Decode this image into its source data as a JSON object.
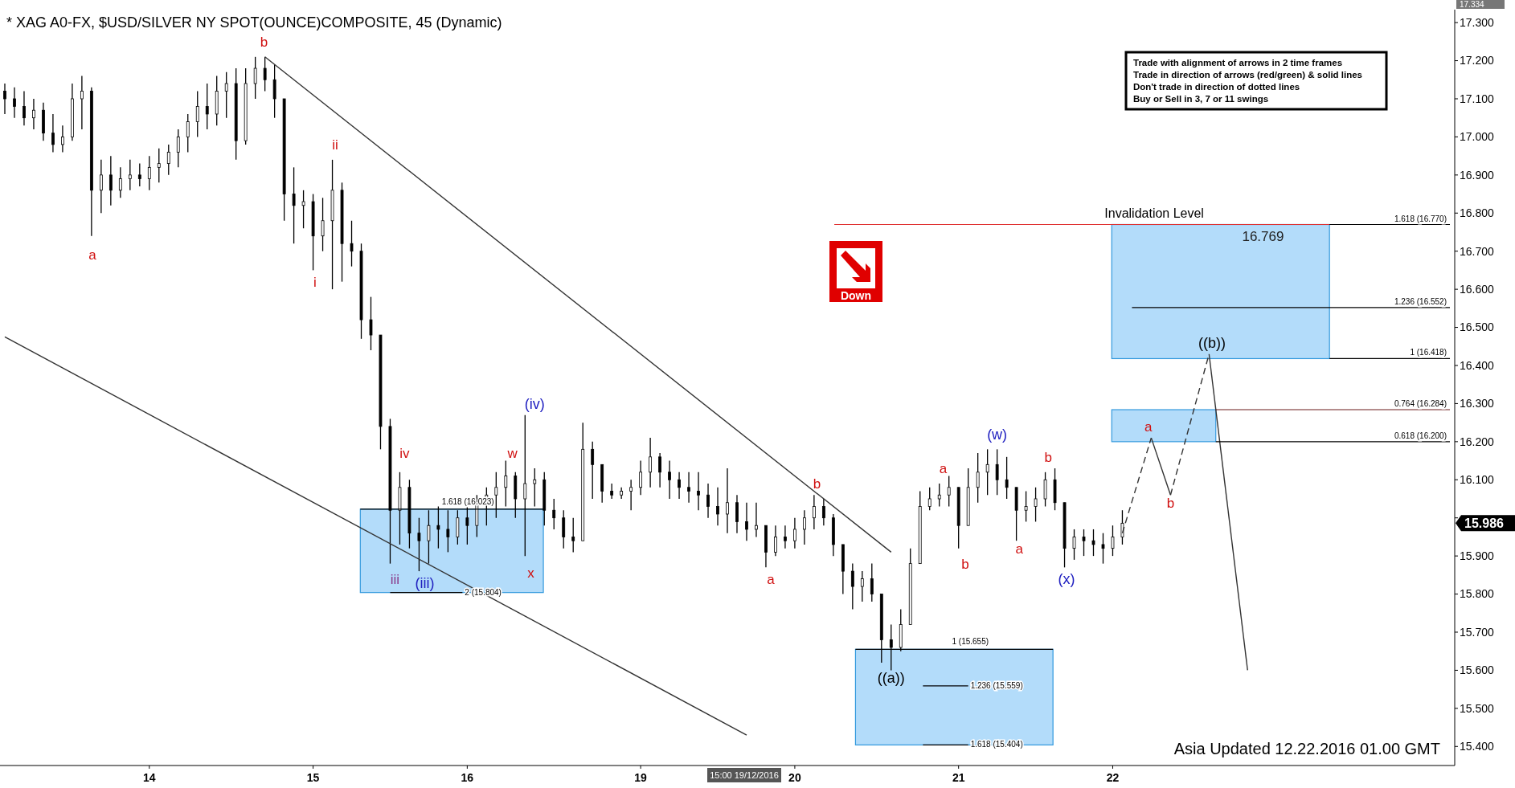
{
  "chart_data": {
    "type": "candlestick",
    "title": "* XAG A0-FX, $USD/SILVER NY SPOT(OUNCE)COMPOSITE, 45 (Dynamic)",
    "color": "#000000",
    "categories": [
      null,
      null,
      null,
      null,
      null,
      null,
      null,
      null,
      null,
      null,
      null,
      null,
      null,
      null,
      null,
      "14",
      null,
      null,
      null,
      null,
      null,
      null,
      null,
      null,
      null,
      null,
      null,
      null,
      null,
      null,
      null,
      null,
      "15",
      null,
      null,
      null,
      null,
      null,
      null,
      null,
      null,
      null,
      null,
      null,
      null,
      null,
      null,
      null,
      "16",
      null,
      null,
      null,
      null,
      null,
      null,
      null,
      null,
      null,
      null,
      null,
      null,
      null,
      null,
      null,
      null,
      null,
      "19",
      null,
      null,
      null,
      null,
      null,
      null,
      null,
      null,
      null,
      null,
      null,
      null,
      null,
      null,
      null,
      "20",
      null,
      null,
      null,
      null,
      null,
      null,
      null,
      null,
      null,
      null,
      null,
      null,
      null,
      null,
      null,
      null,
      "21",
      null,
      null,
      null,
      null,
      null,
      null,
      null,
      null,
      null,
      null,
      null,
      null,
      null,
      null,
      null,
      "22",
      null,
      null,
      null,
      null,
      null,
      null,
      null,
      null,
      null,
      null,
      null,
      null,
      null,
      null,
      null,
      null,
      null,
      null,
      null,
      null,
      null,
      null,
      null,
      null,
      null,
      null,
      null,
      null,
      null,
      null,
      null,
      null,
      null,
      null,
      null
    ],
    "ohlc": [
      [
        17.12,
        17.14,
        17.06,
        17.1
      ],
      [
        17.1,
        17.13,
        17.05,
        17.08
      ],
      [
        17.08,
        17.12,
        17.03,
        17.05
      ],
      [
        17.05,
        17.1,
        17.02,
        17.07
      ],
      [
        17.07,
        17.09,
        16.99,
        17.01
      ],
      [
        17.01,
        17.06,
        16.96,
        16.98
      ],
      [
        16.98,
        17.03,
        16.96,
        17.0
      ],
      [
        17.0,
        17.14,
        16.99,
        17.1
      ],
      [
        17.1,
        17.16,
        17.02,
        17.12
      ],
      [
        17.12,
        17.13,
        16.74,
        16.86
      ],
      [
        16.86,
        16.94,
        16.8,
        16.9
      ],
      [
        16.9,
        16.95,
        16.82,
        16.86
      ],
      [
        16.86,
        16.92,
        16.84,
        16.89
      ],
      [
        16.89,
        16.94,
        16.86,
        16.9
      ],
      [
        16.9,
        16.93,
        16.87,
        16.89
      ],
      [
        16.89,
        16.95,
        16.86,
        16.92
      ],
      [
        16.92,
        16.97,
        16.88,
        16.93
      ],
      [
        16.93,
        16.98,
        16.9,
        16.96
      ],
      [
        16.96,
        17.02,
        16.92,
        17.0
      ],
      [
        17.0,
        17.06,
        16.96,
        17.04
      ],
      [
        17.04,
        17.12,
        17.0,
        17.08
      ],
      [
        17.08,
        17.14,
        17.02,
        17.06
      ],
      [
        17.06,
        17.16,
        17.03,
        17.12
      ],
      [
        17.12,
        17.17,
        17.05,
        17.14
      ],
      [
        17.14,
        17.18,
        16.94,
        16.99
      ],
      [
        16.99,
        17.18,
        16.98,
        17.14
      ],
      [
        17.14,
        17.21,
        17.1,
        17.18
      ],
      [
        17.18,
        17.21,
        17.12,
        17.15
      ],
      [
        17.15,
        17.19,
        17.05,
        17.1
      ],
      [
        17.1,
        17.1,
        16.78,
        16.85
      ],
      [
        16.85,
        16.92,
        16.72,
        16.82
      ],
      [
        16.82,
        16.86,
        16.76,
        16.83
      ],
      [
        16.83,
        16.85,
        16.65,
        16.74
      ],
      [
        16.74,
        16.84,
        16.7,
        16.78
      ],
      [
        16.78,
        16.94,
        16.6,
        16.86
      ],
      [
        16.86,
        16.88,
        16.62,
        16.72
      ],
      [
        16.72,
        16.78,
        16.66,
        16.7
      ],
      [
        16.7,
        16.72,
        16.47,
        16.52
      ],
      [
        16.52,
        16.58,
        16.44,
        16.48
      ],
      [
        16.48,
        16.48,
        16.18,
        16.24
      ],
      [
        16.24,
        16.26,
        15.88,
        16.02
      ],
      [
        16.02,
        16.12,
        15.93,
        16.08
      ],
      [
        16.08,
        16.1,
        15.92,
        15.96
      ],
      [
        15.96,
        16.0,
        15.86,
        15.94
      ],
      [
        15.94,
        16.02,
        15.88,
        15.98
      ],
      [
        15.98,
        16.03,
        15.92,
        15.97
      ],
      [
        15.97,
        16.02,
        15.91,
        15.95
      ],
      [
        15.95,
        16.02,
        15.93,
        16.0
      ],
      [
        16.0,
        16.04,
        15.93,
        15.98
      ],
      [
        15.98,
        16.06,
        15.95,
        16.04
      ],
      [
        16.04,
        16.08,
        15.98,
        16.06
      ],
      [
        16.06,
        16.12,
        16.0,
        16.08
      ],
      [
        16.08,
        16.15,
        16.03,
        16.11
      ],
      [
        16.11,
        16.12,
        16.0,
        16.05
      ],
      [
        16.05,
        16.27,
        15.9,
        16.09
      ],
      [
        16.09,
        16.13,
        16.03,
        16.1
      ],
      [
        16.1,
        16.12,
        15.98,
        16.02
      ],
      [
        16.02,
        16.05,
        15.97,
        16.0
      ],
      [
        16.0,
        16.02,
        15.92,
        15.95
      ],
      [
        15.95,
        16.0,
        15.91,
        15.94
      ],
      [
        15.94,
        16.25,
        15.94,
        16.18
      ],
      [
        16.18,
        16.2,
        16.05,
        16.14
      ],
      [
        16.14,
        16.14,
        16.04,
        16.07
      ],
      [
        16.07,
        16.09,
        16.05,
        16.06
      ],
      [
        16.06,
        16.08,
        16.05,
        16.07
      ],
      [
        16.07,
        16.1,
        16.02,
        16.08
      ],
      [
        16.08,
        16.15,
        16.06,
        16.12
      ],
      [
        16.12,
        16.21,
        16.08,
        16.16
      ],
      [
        16.16,
        16.17,
        16.08,
        16.12
      ],
      [
        16.12,
        16.15,
        16.05,
        16.1
      ],
      [
        16.1,
        16.12,
        16.05,
        16.08
      ],
      [
        16.08,
        16.12,
        16.04,
        16.07
      ],
      [
        16.07,
        16.12,
        16.02,
        16.06
      ],
      [
        16.06,
        16.09,
        16.0,
        16.03
      ],
      [
        16.03,
        16.08,
        15.98,
        16.01
      ],
      [
        16.01,
        16.13,
        15.96,
        16.04
      ],
      [
        16.04,
        16.06,
        15.96,
        15.99
      ],
      [
        15.99,
        16.04,
        15.94,
        15.97
      ],
      [
        15.97,
        16.04,
        15.95,
        15.98
      ],
      [
        15.98,
        15.98,
        15.87,
        15.91
      ],
      [
        15.91,
        15.98,
        15.9,
        15.95
      ],
      [
        15.95,
        15.98,
        15.92,
        15.94
      ],
      [
        15.94,
        16.0,
        15.92,
        15.97
      ],
      [
        15.97,
        16.02,
        15.93,
        16.0
      ],
      [
        16.0,
        16.06,
        15.97,
        16.03
      ],
      [
        16.03,
        16.05,
        15.98,
        16.0
      ],
      [
        16.0,
        16.01,
        15.9,
        15.93
      ],
      [
        15.93,
        15.93,
        15.8,
        15.86
      ],
      [
        15.86,
        15.88,
        15.76,
        15.82
      ],
      [
        15.82,
        15.86,
        15.78,
        15.84
      ],
      [
        15.84,
        15.88,
        15.78,
        15.8
      ],
      [
        15.8,
        15.8,
        15.62,
        15.68
      ],
      [
        15.68,
        15.72,
        15.6,
        15.66
      ],
      [
        15.66,
        15.76,
        15.65,
        15.72
      ],
      [
        15.72,
        15.92,
        15.72,
        15.88
      ],
      [
        15.88,
        16.07,
        15.88,
        16.03
      ],
      [
        16.03,
        16.08,
        16.02,
        16.05
      ],
      [
        16.05,
        16.09,
        16.03,
        16.06
      ],
      [
        16.06,
        16.11,
        16.03,
        16.08
      ],
      [
        16.08,
        16.08,
        15.92,
        15.98
      ],
      [
        15.98,
        16.13,
        15.98,
        16.08
      ],
      [
        16.08,
        16.17,
        16.04,
        16.12
      ],
      [
        16.12,
        16.18,
        16.06,
        16.14
      ],
      [
        16.14,
        16.18,
        16.06,
        16.1
      ],
      [
        16.1,
        16.16,
        16.05,
        16.08
      ],
      [
        16.08,
        16.08,
        15.94,
        16.02
      ],
      [
        16.02,
        16.07,
        15.99,
        16.03
      ],
      [
        16.03,
        16.08,
        15.99,
        16.05
      ],
      [
        16.05,
        16.12,
        16.03,
        16.1
      ],
      [
        16.1,
        16.13,
        16.02,
        16.04
      ],
      [
        16.04,
        16.04,
        15.87,
        15.92
      ],
      [
        15.92,
        15.97,
        15.89,
        15.95
      ],
      [
        15.95,
        15.97,
        15.9,
        15.94
      ],
      [
        15.94,
        15.97,
        15.9,
        15.93
      ],
      [
        15.93,
        15.96,
        15.88,
        15.92
      ],
      [
        15.92,
        15.98,
        15.9,
        15.95
      ],
      [
        15.95,
        16.02,
        15.93,
        15.986
      ],
      null,
      null,
      null,
      null,
      null,
      null,
      null,
      null,
      null,
      null,
      null,
      null,
      null,
      null,
      null,
      null,
      null,
      null,
      null,
      null,
      null,
      null,
      null,
      null,
      null,
      null,
      null,
      null,
      null,
      null,
      null,
      null,
      null,
      null
    ],
    "series": [
      {
        "type": "line",
        "color": "#333333",
        "line_style": "solid",
        "values": [
          null,
          null,
          null,
          null,
          null,
          null,
          null,
          null,
          null,
          null,
          null,
          null,
          null,
          null,
          null,
          null,
          null,
          null,
          null,
          null,
          null,
          null,
          null,
          null,
          null,
          null,
          null,
          17.21,
          null,
          null,
          null,
          null,
          null,
          null,
          null,
          null,
          null,
          null,
          null,
          null,
          null,
          null,
          null,
          null,
          null,
          null,
          null,
          null,
          null,
          null,
          null,
          null,
          null,
          null,
          null,
          null,
          null,
          null,
          null,
          null,
          null,
          null,
          null,
          null,
          null,
          null,
          null,
          null,
          null,
          null,
          null,
          null,
          null,
          null,
          null,
          null,
          null,
          null,
          null,
          null,
          null,
          null,
          null,
          null,
          null,
          null,
          null,
          null,
          null,
          null,
          null,
          null,
          15.91,
          null,
          null,
          null,
          null,
          null,
          null,
          null,
          null,
          null,
          null,
          null,
          null,
          null,
          null,
          null,
          null,
          null,
          null,
          null,
          null,
          null,
          null,
          null,
          null,
          null,
          null,
          null,
          null,
          null,
          null,
          null,
          null,
          null,
          null,
          null,
          null,
          null,
          null,
          null,
          null,
          null,
          null,
          null,
          null,
          null,
          null,
          null,
          null,
          null,
          null,
          null,
          null,
          null,
          null,
          null,
          null,
          null,
          null
        ]
      },
      {
        "type": "line",
        "color": "#333333",
        "line_style": "solid",
        "values": [
          16.475,
          null,
          null,
          null,
          null,
          null,
          null,
          null,
          null,
          null,
          null,
          null,
          null,
          null,
          null,
          null,
          null,
          null,
          null,
          null,
          null,
          null,
          null,
          null,
          null,
          null,
          null,
          null,
          null,
          null,
          null,
          null,
          null,
          null,
          null,
          null,
          null,
          null,
          null,
          null,
          null,
          null,
          null,
          null,
          null,
          null,
          null,
          null,
          null,
          null,
          null,
          null,
          null,
          null,
          null,
          null,
          null,
          null,
          null,
          null,
          null,
          null,
          null,
          null,
          null,
          null,
          null,
          null,
          null,
          null,
          null,
          null,
          null,
          null,
          null,
          null,
          null,
          15.43,
          null,
          null,
          null,
          null,
          null,
          null,
          null,
          null,
          null,
          null,
          null,
          null,
          null,
          null,
          null,
          null,
          null,
          null,
          null,
          null,
          null,
          null,
          null,
          null,
          null,
          null,
          null,
          null,
          null,
          null,
          null,
          null,
          null,
          null,
          null,
          null,
          null,
          null,
          null,
          null,
          null,
          null,
          null,
          null,
          null,
          null,
          null,
          null,
          null,
          null,
          null,
          null,
          null,
          null,
          null,
          null,
          null,
          null,
          null,
          null,
          null,
          null,
          null,
          null,
          null,
          null,
          null,
          null,
          null,
          null,
          null,
          null,
          null
        ]
      },
      {
        "type": "line",
        "color": "#333333",
        "line_style": "dashed",
        "values": [
          null,
          null,
          null,
          null,
          null,
          null,
          null,
          null,
          null,
          null,
          null,
          null,
          null,
          null,
          null,
          null,
          null,
          null,
          null,
          null,
          null,
          null,
          null,
          null,
          null,
          null,
          null,
          null,
          null,
          null,
          null,
          null,
          null,
          null,
          null,
          null,
          null,
          null,
          null,
          null,
          null,
          null,
          null,
          null,
          null,
          null,
          null,
          null,
          null,
          null,
          null,
          null,
          null,
          null,
          null,
          null,
          null,
          null,
          null,
          null,
          null,
          null,
          null,
          null,
          null,
          null,
          null,
          null,
          null,
          null,
          null,
          null,
          null,
          null,
          null,
          null,
          null,
          null,
          null,
          null,
          null,
          null,
          null,
          null,
          null,
          null,
          null,
          null,
          null,
          null,
          null,
          null,
          null,
          null,
          null,
          null,
          null,
          null,
          null,
          null,
          null,
          null,
          null,
          null,
          null,
          null,
          null,
          null,
          null,
          null,
          null,
          null,
          null,
          null,
          null,
          null,
          15.96,
          null,
          null,
          16.21,
          null,
          null,
          null,
          null,
          null,
          null,
          null,
          null,
          null,
          null,
          null,
          null,
          null,
          null,
          null,
          null,
          null,
          null,
          null,
          null,
          null,
          null,
          null,
          null,
          null,
          null,
          null,
          null,
          null,
          null,
          null
        ]
      },
      {
        "type": "line",
        "color": "#333333",
        "line_style": "solid",
        "values": [
          null,
          null,
          null,
          null,
          null,
          null,
          null,
          null,
          null,
          null,
          null,
          null,
          null,
          null,
          null,
          null,
          null,
          null,
          null,
          null,
          null,
          null,
          null,
          null,
          null,
          null,
          null,
          null,
          null,
          null,
          null,
          null,
          null,
          null,
          null,
          null,
          null,
          null,
          null,
          null,
          null,
          null,
          null,
          null,
          null,
          null,
          null,
          null,
          null,
          null,
          null,
          null,
          null,
          null,
          null,
          null,
          null,
          null,
          null,
          null,
          null,
          null,
          null,
          null,
          null,
          null,
          null,
          null,
          null,
          null,
          null,
          null,
          null,
          null,
          null,
          null,
          null,
          null,
          null,
          null,
          null,
          null,
          null,
          null,
          null,
          null,
          null,
          null,
          null,
          null,
          null,
          null,
          null,
          null,
          null,
          null,
          null,
          null,
          null,
          null,
          null,
          null,
          null,
          null,
          null,
          null,
          null,
          null,
          null,
          null,
          null,
          null,
          null,
          null,
          null,
          null,
          null,
          null,
          null,
          16.21,
          null,
          16.06,
          null,
          null,
          null,
          null,
          null,
          null,
          null,
          null,
          null,
          null,
          null,
          null,
          null,
          null,
          null,
          null,
          null,
          null,
          null,
          null,
          null,
          null,
          null,
          null,
          null,
          null,
          null,
          null,
          null
        ]
      },
      {
        "type": "line",
        "color": "#333333",
        "line_style": "dashed",
        "values": [
          null,
          null,
          null,
          null,
          null,
          null,
          null,
          null,
          null,
          null,
          null,
          null,
          null,
          null,
          null,
          null,
          null,
          null,
          null,
          null,
          null,
          null,
          null,
          null,
          null,
          null,
          null,
          null,
          null,
          null,
          null,
          null,
          null,
          null,
          null,
          null,
          null,
          null,
          null,
          null,
          null,
          null,
          null,
          null,
          null,
          null,
          null,
          null,
          null,
          null,
          null,
          null,
          null,
          null,
          null,
          null,
          null,
          null,
          null,
          null,
          null,
          null,
          null,
          null,
          null,
          null,
          null,
          null,
          null,
          null,
          null,
          null,
          null,
          null,
          null,
          null,
          null,
          null,
          null,
          null,
          null,
          null,
          null,
          null,
          null,
          null,
          null,
          null,
          null,
          null,
          null,
          null,
          null,
          null,
          null,
          null,
          null,
          null,
          null,
          null,
          null,
          null,
          null,
          null,
          null,
          null,
          null,
          null,
          null,
          null,
          null,
          null,
          null,
          null,
          null,
          null,
          null,
          null,
          null,
          null,
          null,
          16.06,
          null,
          null,
          null,
          16.43,
          null,
          null,
          null,
          null,
          null,
          null,
          null,
          null,
          null,
          null,
          null,
          null,
          null,
          null,
          null,
          null,
          null,
          null,
          null,
          null,
          null,
          null,
          null,
          null,
          null
        ]
      },
      {
        "type": "line",
        "color": "#333333",
        "line_style": "solid",
        "values": [
          null,
          null,
          null,
          null,
          null,
          null,
          null,
          null,
          null,
          null,
          null,
          null,
          null,
          null,
          null,
          null,
          null,
          null,
          null,
          null,
          null,
          null,
          null,
          null,
          null,
          null,
          null,
          null,
          null,
          null,
          null,
          null,
          null,
          null,
          null,
          null,
          null,
          null,
          null,
          null,
          null,
          null,
          null,
          null,
          null,
          null,
          null,
          null,
          null,
          null,
          null,
          null,
          null,
          null,
          null,
          null,
          null,
          null,
          null,
          null,
          null,
          null,
          null,
          null,
          null,
          null,
          null,
          null,
          null,
          null,
          null,
          null,
          null,
          null,
          null,
          null,
          null,
          null,
          null,
          null,
          null,
          null,
          null,
          null,
          null,
          null,
          null,
          null,
          null,
          null,
          null,
          null,
          null,
          null,
          null,
          null,
          null,
          null,
          null,
          null,
          null,
          null,
          null,
          null,
          null,
          null,
          null,
          null,
          null,
          null,
          null,
          null,
          null,
          null,
          null,
          null,
          null,
          null,
          null,
          null,
          null,
          null,
          null,
          null,
          null,
          16.43,
          null,
          null,
          null,
          15.6,
          null,
          null,
          null,
          null,
          null,
          null,
          null,
          null,
          null,
          null,
          null,
          null,
          null,
          null,
          null,
          null,
          null,
          null,
          null,
          null,
          null
        ]
      }
    ],
    "ylim": [
      15.35,
      17.334
    ],
    "yticks": [
      {
        "value": 15.4,
        "label": "15.400"
      },
      {
        "value": 15.5,
        "label": "15.500"
      },
      {
        "value": 15.6,
        "label": "15.600"
      },
      {
        "value": 15.7,
        "label": "15.700"
      },
      {
        "value": 15.8,
        "label": "15.800"
      },
      {
        "value": 15.9,
        "label": "15.900"
      },
      {
        "value": 16.0,
        "label": null
      },
      {
        "value": 16.1,
        "label": "16.100"
      },
      {
        "value": 16.2,
        "label": "16.200"
      },
      {
        "value": 16.3,
        "label": "16.300"
      },
      {
        "value": 16.4,
        "label": "16.400"
      },
      {
        "value": 16.5,
        "label": "16.500"
      },
      {
        "value": 16.6,
        "label": "16.600"
      },
      {
        "value": 16.7,
        "label": "16.700"
      },
      {
        "value": 16.8,
        "label": "16.800"
      },
      {
        "value": 16.9,
        "label": "16.900"
      },
      {
        "value": 17.0,
        "label": "17.000"
      },
      {
        "value": 17.1,
        "label": "17.100"
      },
      {
        "value": 17.2,
        "label": "17.200"
      },
      {
        "value": 17.3,
        "label": "17.300"
      }
    ],
    "grid": false,
    "bands": [
      {
        "axis": "y",
        "from": 16.418,
        "to": 16.77,
        "color": "#b3dcfa"
      },
      {
        "axis": "y",
        "from": 16.2,
        "to": 16.284,
        "color": "#b3dcfa"
      },
      {
        "axis": "y",
        "from": 15.804,
        "to": 16.023,
        "color": "#b3dcfa"
      },
      {
        "axis": "y",
        "from": 15.404,
        "to": 15.655,
        "color": "#b3dcfa"
      }
    ],
    "ref_lines": [
      {
        "axis": "y",
        "value": 16.77,
        "label": "Invalidation Level",
        "color": "#e03030"
      },
      {
        "axis": "y",
        "value": 16.77,
        "label": "1.618 (16.770)",
        "color": "#000000"
      },
      {
        "axis": "y",
        "value": 16.552,
        "label": "1.236 (16.552)",
        "color": "#000000"
      },
      {
        "axis": "y",
        "value": 16.418,
        "label": "1 (16.418)",
        "color": "#000000"
      },
      {
        "axis": "y",
        "value": 16.284,
        "label": "0.764 (16.284)",
        "color": "#6a1a1a"
      },
      {
        "axis": "y",
        "value": 16.2,
        "label": "0.618 (16.200)",
        "color": "#000000"
      },
      {
        "axis": "y",
        "value": 16.023,
        "label": "1.618 (16.023)",
        "color": "#000000"
      },
      {
        "axis": "y",
        "value": 15.804,
        "label": "2 (15.804)",
        "color": "#000000"
      },
      {
        "axis": "y",
        "value": 15.655,
        "label": "1 (15.655)",
        "color": "#000000"
      },
      {
        "axis": "y",
        "value": 15.559,
        "label": "1.236 (15.559)",
        "color": "#000000"
      },
      {
        "axis": "y",
        "value": 15.404,
        "label": "1.618 (15.404)",
        "color": "#000000"
      }
    ],
    "annotations": [
      "a",
      "b",
      "ii",
      "i",
      "iv",
      "iii",
      "(iii)",
      "w",
      "(iv)",
      "x",
      "a",
      "b",
      "((a))",
      "a",
      "b",
      "(w)",
      "a",
      "b",
      "(x)",
      "a",
      "b",
      "((b))",
      {
        "text": "16.769",
        "y": 16.769
      },
      "17.334",
      "15.986",
      "Trade with alignment of arrows in 2 time frames",
      "Trade in direction of arrows (red/green) & solid lines",
      "Don't trade in direction of dotted lines",
      "Buy or Sell in 3, 7 or 11 swings",
      "Down",
      "Asia Updated 12.22.2016 01.00 GMT",
      "15:00 19/12/2016"
    ]
  }
}
